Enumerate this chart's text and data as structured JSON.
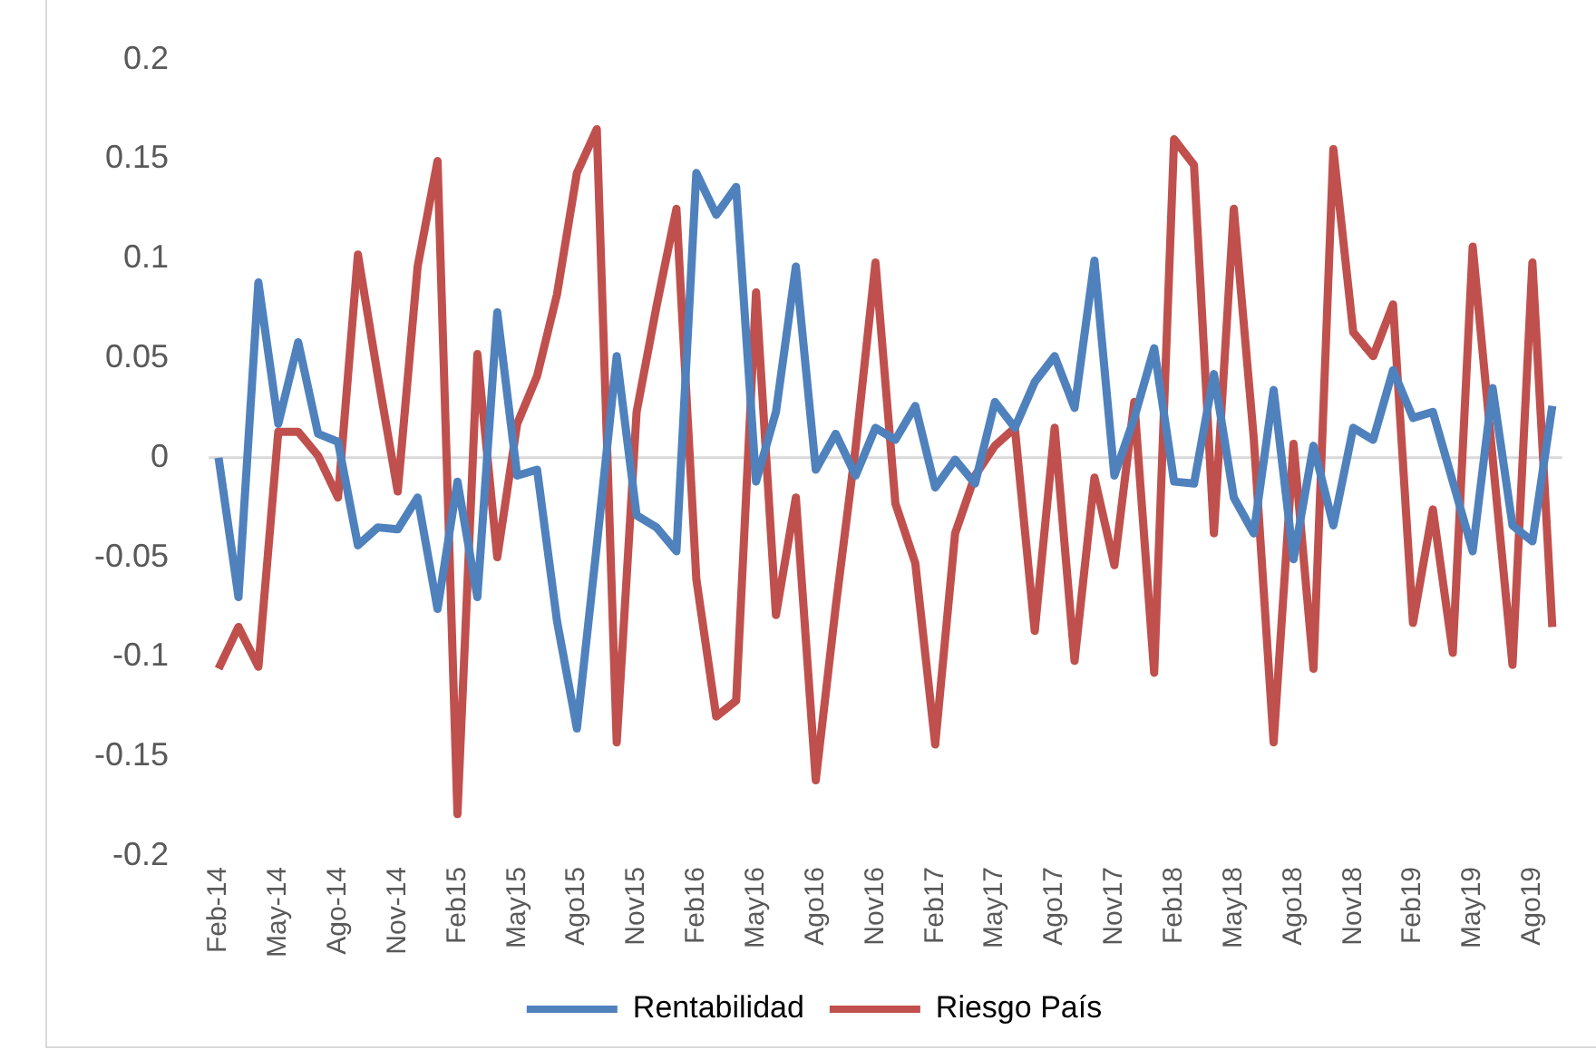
{
  "chart_data": {
    "type": "line",
    "categories": [
      "Feb-14",
      null,
      null,
      "May-14",
      null,
      null,
      "Ago-14",
      null,
      null,
      "Nov-14",
      null,
      null,
      "Feb15",
      null,
      null,
      "May15",
      null,
      null,
      "Ago15",
      null,
      null,
      "Nov15",
      null,
      null,
      "Feb16",
      null,
      null,
      "May16",
      null,
      null,
      "Ago16",
      null,
      null,
      "Nov16",
      null,
      null,
      "Feb17",
      null,
      null,
      "May17",
      null,
      null,
      "Ago17",
      null,
      null,
      "Nov17",
      null,
      null,
      "Feb18",
      null,
      null,
      "May18",
      null,
      null,
      "Ago18",
      null,
      null,
      "Nov18",
      null,
      null,
      "Feb19",
      null,
      null,
      "May19",
      null,
      null,
      "Ago19",
      null
    ],
    "series": [
      {
        "name": "Rentabilidad",
        "color": "#4f81bd",
        "values": [
          0.0,
          -0.07,
          0.088,
          0.017,
          0.058,
          0.012,
          0.008,
          -0.044,
          -0.035,
          -0.036,
          -0.02,
          -0.076,
          -0.012,
          -0.07,
          0.073,
          -0.009,
          -0.006,
          -0.082,
          -0.136,
          -0.044,
          0.051,
          -0.029,
          -0.035,
          -0.047,
          0.143,
          0.122,
          0.136,
          -0.012,
          0.023,
          0.096,
          -0.006,
          0.012,
          -0.009,
          0.015,
          0.009,
          0.026,
          -0.015,
          -0.001,
          -0.013,
          0.028,
          0.015,
          0.038,
          0.051,
          0.025,
          0.099,
          -0.009,
          0.02,
          0.055,
          -0.012,
          -0.013,
          0.042,
          -0.02,
          -0.038,
          0.034,
          -0.051,
          0.006,
          -0.034,
          0.015,
          0.009,
          0.044,
          0.02,
          0.023,
          -0.012,
          -0.047,
          0.035,
          -0.034,
          -0.042,
          0.026
        ]
      },
      {
        "name": "Riesgo País",
        "color": "#c0504d",
        "values": [
          -0.106,
          -0.085,
          -0.105,
          0.013,
          0.013,
          0.001,
          -0.02,
          0.102,
          0.041,
          -0.017,
          0.096,
          0.149,
          -0.179,
          0.052,
          -0.05,
          0.017,
          0.041,
          0.082,
          0.143,
          0.165,
          -0.143,
          0.023,
          0.076,
          0.125,
          -0.061,
          -0.13,
          -0.122,
          0.083,
          -0.079,
          -0.02,
          -0.162,
          -0.075,
          0.005,
          0.098,
          -0.023,
          -0.053,
          -0.144,
          -0.038,
          -0.009,
          0.006,
          0.015,
          -0.087,
          0.015,
          -0.102,
          -0.01,
          -0.054,
          0.028,
          -0.108,
          0.16,
          0.147,
          -0.038,
          0.125,
          0.01,
          -0.143,
          0.007,
          -0.106,
          0.155,
          0.063,
          0.051,
          0.077,
          -0.083,
          -0.026,
          -0.098,
          0.106,
          0.0,
          -0.104,
          0.098,
          -0.085
        ]
      }
    ],
    "ylim": [
      -0.2,
      0.2
    ],
    "yticks": [
      -0.2,
      -0.15,
      -0.1,
      -0.05,
      0,
      0.05,
      0.1,
      0.15,
      0.2
    ],
    "ref_lines": [
      {
        "axis": "y",
        "value": 0,
        "color": "#d9d9d9"
      }
    ],
    "grid": false,
    "legend": "bottom",
    "marker": "none",
    "line_style": "solid"
  }
}
